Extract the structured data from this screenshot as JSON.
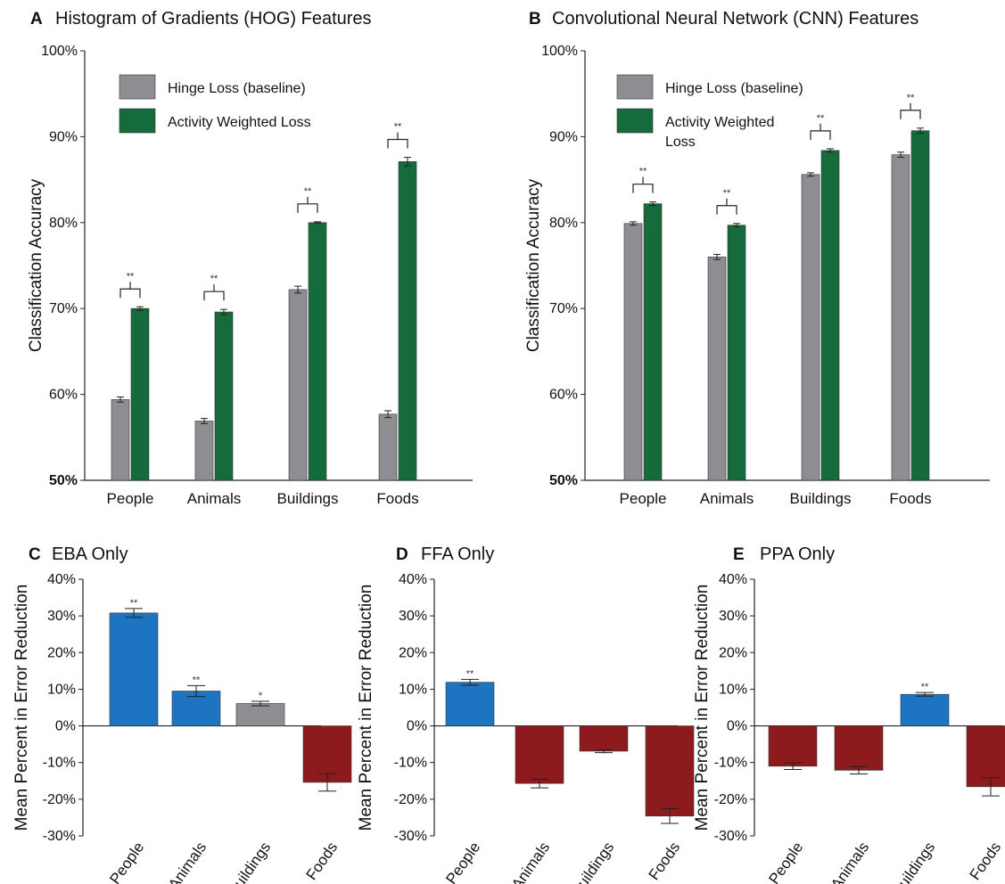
{
  "colors": {
    "gray": "#8e8e92",
    "green": "#156b3c",
    "blue": "#1d74c0",
    "red": "#8d1b1e",
    "axis": "#222222"
  },
  "chart_data": [
    {
      "panel": "A",
      "title": "Histogram of Gradients (HOG) Features",
      "type": "bar",
      "ylabel": "Classification Accuracy",
      "ylim": [
        50,
        100
      ],
      "yticks": [
        "50%",
        "60%",
        "70%",
        "80%",
        "90%",
        "100%"
      ],
      "categories": [
        "People",
        "Animals",
        "Buildings",
        "Foods"
      ],
      "series": [
        {
          "name": "Hinge Loss (baseline)",
          "values": [
            59.4,
            56.9,
            72.2,
            57.7
          ],
          "errors": [
            0.3,
            0.3,
            0.4,
            0.4
          ]
        },
        {
          "name": "Activity Weighted Loss",
          "values": [
            70.0,
            69.6,
            80.0,
            87.1
          ],
          "errors": [
            0.2,
            0.3,
            0.1,
            0.5
          ]
        }
      ],
      "significance": [
        "**",
        "**",
        "**",
        "**"
      ]
    },
    {
      "panel": "B",
      "title": "Convolutional Neural Network (CNN) Features",
      "type": "bar",
      "ylabel": "Classification Accuracy",
      "ylim": [
        50,
        100
      ],
      "yticks": [
        "50%",
        "60%",
        "70%",
        "80%",
        "90%",
        "100%"
      ],
      "categories": [
        "People",
        "Animals",
        "Buildings",
        "Foods"
      ],
      "series": [
        {
          "name": "Hinge Loss (baseline)",
          "values": [
            79.9,
            76.0,
            85.6,
            87.9
          ],
          "errors": [
            0.2,
            0.3,
            0.2,
            0.3
          ]
        },
        {
          "name": "Activity Weighted Loss",
          "legend_lines": [
            "Activity Weighted",
            "Loss"
          ],
          "values": [
            82.2,
            79.7,
            88.4,
            90.7
          ],
          "errors": [
            0.2,
            0.2,
            0.2,
            0.3
          ]
        }
      ],
      "significance": [
        "**",
        "**",
        "**",
        "**"
      ]
    },
    {
      "panel": "C",
      "title": "EBA Only",
      "type": "bar",
      "ylabel": "Mean Percent in Error Reduction",
      "ylim": [
        -30,
        40
      ],
      "yticks": [
        "-30%",
        "-20%",
        "-10%",
        "0%",
        "10%",
        "20%",
        "30%",
        "40%"
      ],
      "categories": [
        "People",
        "Animals",
        "Buildings",
        "Foods"
      ],
      "values": [
        30.8,
        9.5,
        6.1,
        -15.4
      ],
      "errors": [
        1.2,
        1.5,
        0.6,
        2.4
      ],
      "bar_colors": [
        "blue",
        "blue",
        "gray",
        "red"
      ],
      "significance": [
        "**",
        "**",
        "*",
        ""
      ]
    },
    {
      "panel": "D",
      "title": "FFA Only",
      "type": "bar",
      "ylabel": "Mean Percent in Error Reduction",
      "ylim": [
        -30,
        40
      ],
      "yticks": [
        "-30%",
        "-20%",
        "-10%",
        "0%",
        "10%",
        "20%",
        "30%",
        "40%"
      ],
      "categories": [
        "People",
        "Animals",
        "Buildings",
        "Foods"
      ],
      "values": [
        11.9,
        -15.7,
        -6.9,
        -24.6
      ],
      "errors": [
        0.8,
        1.2,
        0.4,
        2.0
      ],
      "bar_colors": [
        "blue",
        "red",
        "red",
        "red"
      ],
      "significance": [
        "**",
        "",
        "",
        ""
      ]
    },
    {
      "panel": "E",
      "title": "PPA Only",
      "type": "bar",
      "ylabel": "Mean Percent in Error Reduction",
      "ylim": [
        -30,
        40
      ],
      "yticks": [
        "-30%",
        "-20%",
        "-10%",
        "0%",
        "10%",
        "20%",
        "30%",
        "40%"
      ],
      "categories": [
        "People",
        "Animals",
        "Buildings",
        "Foods"
      ],
      "values": [
        -11.0,
        -12.1,
        8.6,
        -16.6
      ],
      "errors": [
        0.9,
        1.0,
        0.5,
        2.5
      ],
      "bar_colors": [
        "red",
        "red",
        "blue",
        "red"
      ],
      "significance": [
        "",
        "",
        "**",
        ""
      ]
    }
  ]
}
